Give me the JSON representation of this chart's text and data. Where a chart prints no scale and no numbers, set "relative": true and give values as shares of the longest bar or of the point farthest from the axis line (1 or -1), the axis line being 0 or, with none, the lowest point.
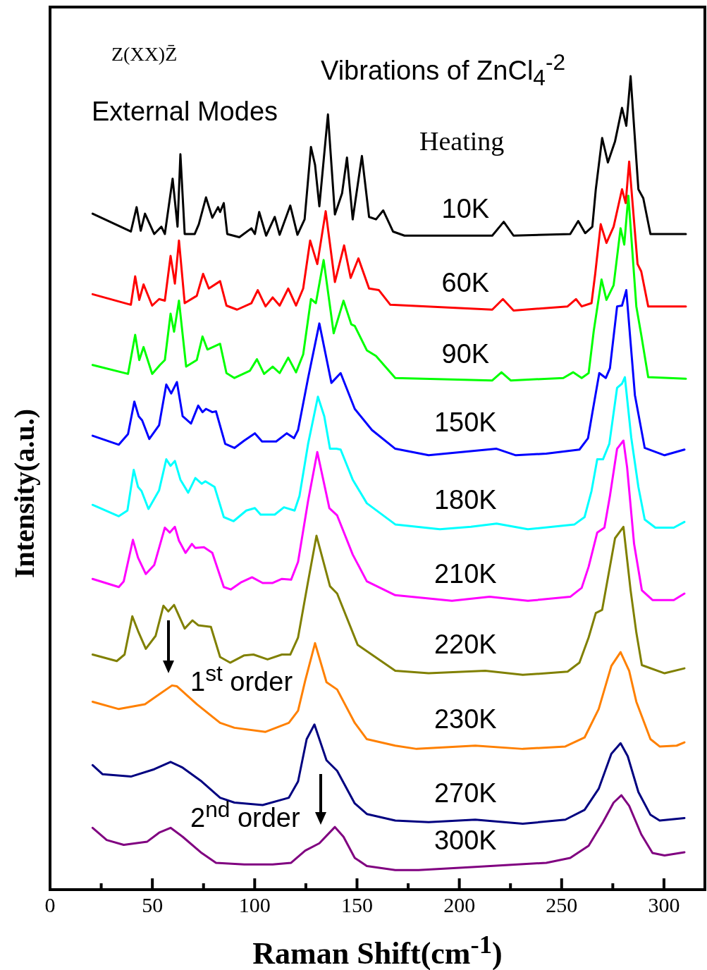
{
  "chart_data": {
    "type": "line",
    "relative": true,
    "xlabel": "Raman Shift(cm$^{-1}$)",
    "ylabel": "Intensity(a.u.)",
    "xlim": [
      0,
      320
    ],
    "xticks": [
      0,
      {
        "value": 25,
        "label": null
      },
      50,
      {
        "value": 75,
        "label": null
      },
      100,
      {
        "value": 125,
        "label": null
      },
      150,
      {
        "value": 175,
        "label": null
      },
      200,
      {
        "value": 225,
        "label": null
      },
      250,
      {
        "value": 275,
        "label": null
      },
      300
    ],
    "marker": "none",
    "line_style": "solid",
    "annotations": [
      "Z(XX)Z̄",
      "Vibrations of ZnCl$_{4}$$^{-2}$",
      "External Modes",
      "Heating",
      "1$^{st}$ order",
      "2$^{nd}$ order"
    ],
    "series": [
      {
        "name": "10K",
        "color": "#000000",
        "x": [
          20.8,
          39.5,
          42.3,
          44.3,
          46.4,
          50.9,
          54.4,
          56.1,
          59.9,
          62.3,
          63.7,
          65.8,
          70.7,
          72.7,
          76.2,
          79.3,
          82.1,
          83.1,
          84.9,
          86.6,
          92.5,
          98.4,
          100.1,
          102.2,
          105.6,
          109.8,
          112.2,
          117.4,
          120.9,
          124.4,
          127.5,
          129.5,
          131.6,
          135.8,
          139.2,
          142.7,
          145.1,
          147.9,
          152.4,
          155.9,
          159.3,
          162.8,
          167.6,
          173.2,
          216.1,
          221.7,
          226.5,
          254.2,
          258.1,
          261.5,
          265.0,
          266.7,
          269.8,
          272.6,
          276.1,
          279.5,
          281.6,
          283.7,
          287.5,
          289.9,
          293.4,
          310.7
        ],
        "values": [
          0.831,
          0.809,
          0.839,
          0.81,
          0.831,
          0.806,
          0.815,
          0.806,
          0.874,
          0.815,
          0.904,
          0.806,
          0.806,
          0.818,
          0.851,
          0.826,
          0.839,
          0.833,
          0.844,
          0.806,
          0.802,
          0.813,
          0.806,
          0.833,
          0.804,
          0.827,
          0.805,
          0.841,
          0.805,
          0.824,
          0.913,
          0.891,
          0.84,
          0.953,
          0.83,
          0.856,
          0.9,
          0.824,
          0.902,
          0.827,
          0.824,
          0.835,
          0.809,
          0.804,
          0.804,
          0.821,
          0.804,
          0.806,
          0.822,
          0.807,
          0.815,
          0.861,
          0.924,
          0.894,
          0.92,
          0.961,
          0.939,
          1.0,
          0.861,
          0.85,
          0.806,
          0.806
        ]
      },
      {
        "name": "60K",
        "color": "#ff0000",
        "x": [
          20.8,
          39.5,
          41.6,
          43.6,
          45.7,
          49.9,
          53.3,
          56.1,
          58.9,
          61.0,
          63.0,
          65.8,
          71.7,
          74.8,
          77.6,
          83.1,
          86.2,
          91.4,
          98.4,
          101.5,
          105.3,
          108.8,
          112.2,
          116.4,
          120.2,
          123.7,
          127.1,
          130.6,
          134.7,
          139.2,
          143.7,
          146.9,
          150.7,
          155.9,
          160.7,
          166.3,
          216.1,
          221.3,
          226.5,
          252.9,
          257.0,
          259.8,
          264.6,
          266.4,
          269.1,
          271.9,
          275.4,
          279.5,
          281.3,
          283.0,
          287.1,
          288.9,
          292.3,
          310.7
        ],
        "values": [
          0.732,
          0.719,
          0.754,
          0.725,
          0.744,
          0.718,
          0.726,
          0.724,
          0.779,
          0.745,
          0.798,
          0.721,
          0.73,
          0.757,
          0.739,
          0.748,
          0.718,
          0.713,
          0.721,
          0.737,
          0.717,
          0.728,
          0.718,
          0.739,
          0.718,
          0.739,
          0.798,
          0.769,
          0.834,
          0.747,
          0.792,
          0.752,
          0.776,
          0.739,
          0.737,
          0.719,
          0.713,
          0.726,
          0.712,
          0.717,
          0.726,
          0.717,
          0.721,
          0.757,
          0.818,
          0.795,
          0.815,
          0.861,
          0.844,
          0.895,
          0.769,
          0.76,
          0.717,
          0.717
        ]
      },
      {
        "name": "90K",
        "color": "#00ff00",
        "x": [
          20.8,
          38.1,
          41.6,
          43.6,
          45.7,
          49.9,
          53.7,
          56.1,
          58.9,
          60.6,
          63.0,
          66.5,
          71.7,
          74.5,
          76.9,
          83.1,
          86.2,
          90.1,
          97.7,
          101.1,
          104.6,
          108.8,
          112.2,
          116.4,
          120.2,
          123.7,
          127.5,
          129.9,
          133.7,
          138.6,
          143.4,
          147.2,
          148.9,
          154.8,
          159.3,
          168.7,
          216.1,
          220.6,
          225.1,
          250.8,
          255.6,
          259.8,
          263.2,
          265.7,
          269.5,
          271.9,
          275.4,
          278.8,
          280.6,
          282.6,
          286.5,
          288.9,
          292.3,
          310.7
        ],
        "values": [
          0.645,
          0.634,
          0.682,
          0.651,
          0.667,
          0.634,
          0.645,
          0.651,
          0.708,
          0.686,
          0.724,
          0.643,
          0.651,
          0.68,
          0.664,
          0.671,
          0.635,
          0.629,
          0.638,
          0.652,
          0.634,
          0.643,
          0.635,
          0.654,
          0.636,
          0.658,
          0.726,
          0.721,
          0.774,
          0.684,
          0.724,
          0.695,
          0.693,
          0.663,
          0.656,
          0.629,
          0.626,
          0.636,
          0.626,
          0.629,
          0.636,
          0.629,
          0.635,
          0.687,
          0.75,
          0.725,
          0.743,
          0.813,
          0.793,
          0.853,
          0.717,
          0.682,
          0.63,
          0.628
        ]
      },
      {
        "name": "150K",
        "color": "#0000ff",
        "x": [
          20.8,
          33.6,
          38.1,
          41.2,
          43.3,
          45.0,
          48.5,
          53.3,
          56.8,
          59.2,
          62.0,
          64.8,
          68.9,
          72.4,
          74.5,
          76.2,
          79.3,
          81.1,
          85.6,
          90.1,
          94.9,
          100.1,
          103.6,
          110.5,
          115.7,
          119.2,
          121.2,
          126.1,
          131.6,
          137.5,
          142.0,
          148.9,
          157.3,
          168.7,
          185.0,
          218.2,
          227.6,
          242.5,
          258.7,
          262.9,
          265.0,
          268.4,
          271.6,
          273.6,
          277.1,
          279.5,
          281.6,
          285.8,
          290.6,
          300.3,
          310.0
        ],
        "values": [
          0.558,
          0.547,
          0.56,
          0.6,
          0.582,
          0.577,
          0.554,
          0.571,
          0.621,
          0.61,
          0.624,
          0.582,
          0.573,
          0.595,
          0.587,
          0.591,
          0.587,
          0.588,
          0.548,
          0.543,
          0.552,
          0.561,
          0.551,
          0.551,
          0.561,
          0.555,
          0.565,
          0.629,
          0.696,
          0.623,
          0.635,
          0.591,
          0.565,
          0.542,
          0.534,
          0.542,
          0.534,
          0.536,
          0.541,
          0.555,
          0.586,
          0.635,
          0.629,
          0.641,
          0.717,
          0.718,
          0.737,
          0.608,
          0.543,
          0.534,
          0.541
        ]
      },
      {
        "name": "180K",
        "color": "#00ffff",
        "x": [
          20.8,
          33.6,
          37.8,
          40.9,
          43.0,
          44.7,
          48.1,
          53.3,
          56.8,
          58.9,
          61.0,
          63.7,
          67.5,
          71.0,
          74.1,
          75.9,
          80.4,
          84.9,
          89.7,
          95.9,
          100.1,
          102.9,
          109.8,
          114.3,
          119.5,
          121.9,
          126.1,
          130.9,
          134.0,
          136.8,
          139.9,
          142.0,
          147.9,
          154.8,
          168.7,
          190.5,
          205.7,
          218.2,
          233.5,
          256.3,
          261.2,
          264.6,
          267.4,
          270.2,
          273.3,
          277.1,
          279.5,
          280.9,
          284.0,
          287.5,
          290.6,
          295.8,
          304.8,
          310.0
        ],
        "values": [
          0.473,
          0.459,
          0.466,
          0.516,
          0.495,
          0.49,
          0.468,
          0.491,
          0.529,
          0.521,
          0.527,
          0.504,
          0.488,
          0.506,
          0.499,
          0.502,
          0.495,
          0.458,
          0.453,
          0.466,
          0.469,
          0.461,
          0.461,
          0.47,
          0.466,
          0.484,
          0.548,
          0.606,
          0.582,
          0.542,
          0.542,
          0.541,
          0.504,
          0.475,
          0.449,
          0.443,
          0.446,
          0.45,
          0.443,
          0.449,
          0.458,
          0.49,
          0.529,
          0.529,
          0.548,
          0.617,
          0.622,
          0.63,
          0.556,
          0.495,
          0.455,
          0.445,
          0.445,
          0.452
        ]
      },
      {
        "name": "210K",
        "color": "#ff00ff",
        "x": [
          20.8,
          33.6,
          36.0,
          40.5,
          43.0,
          46.8,
          50.9,
          56.1,
          58.5,
          61.0,
          63.0,
          66.2,
          69.3,
          71.0,
          75.2,
          79.3,
          84.9,
          88.3,
          93.5,
          98.7,
          103.9,
          108.8,
          113.3,
          117.8,
          121.2,
          126.1,
          130.6,
          136.5,
          140.3,
          147.9,
          154.8,
          168.7,
          196.4,
          214.8,
          233.5,
          254.2,
          259.8,
          263.2,
          267.4,
          270.9,
          273.6,
          277.1,
          280.2,
          282.0,
          285.4,
          289.2,
          294.4,
          304.8,
          310.0
        ],
        "values": [
          0.382,
          0.372,
          0.379,
          0.43,
          0.408,
          0.388,
          0.399,
          0.445,
          0.439,
          0.446,
          0.429,
          0.414,
          0.425,
          0.42,
          0.421,
          0.414,
          0.372,
          0.369,
          0.378,
          0.384,
          0.377,
          0.377,
          0.382,
          0.381,
          0.403,
          0.478,
          0.538,
          0.469,
          0.46,
          0.412,
          0.379,
          0.362,
          0.355,
          0.36,
          0.355,
          0.36,
          0.371,
          0.397,
          0.439,
          0.445,
          0.484,
          0.542,
          0.552,
          0.519,
          0.425,
          0.368,
          0.356,
          0.356,
          0.364
        ]
      },
      {
        "name": "220K",
        "color": "#808000",
        "x": [
          20.8,
          32.6,
          36.4,
          40.2,
          43.0,
          46.8,
          51.6,
          55.4,
          57.8,
          60.6,
          65.8,
          69.6,
          72.4,
          78.6,
          83.1,
          88.0,
          94.9,
          99.4,
          106.3,
          113.3,
          117.4,
          121.2,
          126.1,
          130.2,
          136.8,
          140.3,
          150.3,
          168.7,
          185.0,
          212.7,
          231.0,
          252.9,
          258.7,
          263.2,
          266.7,
          269.8,
          276.1,
          280.2,
          283.7,
          286.5,
          289.2,
          300.3,
          310.0
        ],
        "values": [
          0.289,
          0.281,
          0.289,
          0.336,
          0.318,
          0.296,
          0.312,
          0.349,
          0.342,
          0.35,
          0.321,
          0.331,
          0.325,
          0.323,
          0.286,
          0.279,
          0.288,
          0.289,
          0.283,
          0.289,
          0.289,
          0.31,
          0.379,
          0.435,
          0.373,
          0.364,
          0.301,
          0.269,
          0.266,
          0.269,
          0.264,
          0.268,
          0.279,
          0.31,
          0.34,
          0.344,
          0.432,
          0.446,
          0.368,
          0.316,
          0.276,
          0.266,
          0.272
        ]
      },
      {
        "name": "230K",
        "color": "#ff8000",
        "x": [
          20.8,
          33.6,
          46.4,
          53.3,
          59.6,
          62.0,
          71.7,
          83.1,
          90.1,
          105.3,
          116.7,
          121.2,
          124.7,
          129.5,
          135.1,
          140.3,
          148.9,
          154.8,
          168.7,
          179.1,
          207.8,
          231.0,
          251.8,
          261.2,
          268.1,
          274.3,
          278.8,
          283.0,
          286.5,
          293.4,
          297.9,
          306.2,
          310.0
        ],
        "values": [
          0.231,
          0.222,
          0.228,
          0.24,
          0.251,
          0.25,
          0.228,
          0.205,
          0.199,
          0.194,
          0.205,
          0.22,
          0.257,
          0.303,
          0.255,
          0.246,
          0.205,
          0.185,
          0.177,
          0.173,
          0.177,
          0.173,
          0.176,
          0.187,
          0.222,
          0.275,
          0.292,
          0.269,
          0.231,
          0.185,
          0.176,
          0.177,
          0.181
        ]
      },
      {
        "name": "270K",
        "color": "#000080",
        "x": [
          20.8,
          25.6,
          39.5,
          50.9,
          58.9,
          64.8,
          74.1,
          83.1,
          90.1,
          103.9,
          116.7,
          121.2,
          125.4,
          129.2,
          135.1,
          140.3,
          148.9,
          154.8,
          168.7,
          185.0,
          207.8,
          231.0,
          251.8,
          261.2,
          268.1,
          274.3,
          278.8,
          282.3,
          287.5,
          293.4,
          297.9,
          310.0
        ],
        "values": [
          0.153,
          0.142,
          0.139,
          0.148,
          0.157,
          0.15,
          0.133,
          0.113,
          0.107,
          0.104,
          0.113,
          0.133,
          0.185,
          0.203,
          0.159,
          0.146,
          0.106,
          0.093,
          0.085,
          0.083,
          0.086,
          0.081,
          0.086,
          0.098,
          0.124,
          0.167,
          0.18,
          0.164,
          0.12,
          0.092,
          0.085,
          0.088
        ]
      },
      {
        "name": "300K",
        "color": "#800080",
        "x": [
          20.8,
          27.7,
          36.0,
          47.5,
          53.3,
          58.9,
          64.8,
          74.1,
          81.1,
          94.9,
          108.8,
          117.8,
          124.7,
          131.6,
          139.2,
          143.4,
          148.9,
          154.8,
          168.7,
          180.1,
          207.8,
          242.5,
          254.2,
          263.2,
          270.2,
          275.4,
          279.2,
          283.0,
          288.9,
          294.4,
          300.3,
          310.0
        ],
        "values": [
          0.076,
          0.061,
          0.055,
          0.059,
          0.07,
          0.076,
          0.065,
          0.045,
          0.033,
          0.031,
          0.031,
          0.033,
          0.048,
          0.057,
          0.077,
          0.065,
          0.039,
          0.029,
          0.024,
          0.024,
          0.028,
          0.033,
          0.039,
          0.054,
          0.083,
          0.107,
          0.116,
          0.103,
          0.068,
          0.045,
          0.042,
          0.046
        ]
      }
    ]
  }
}
